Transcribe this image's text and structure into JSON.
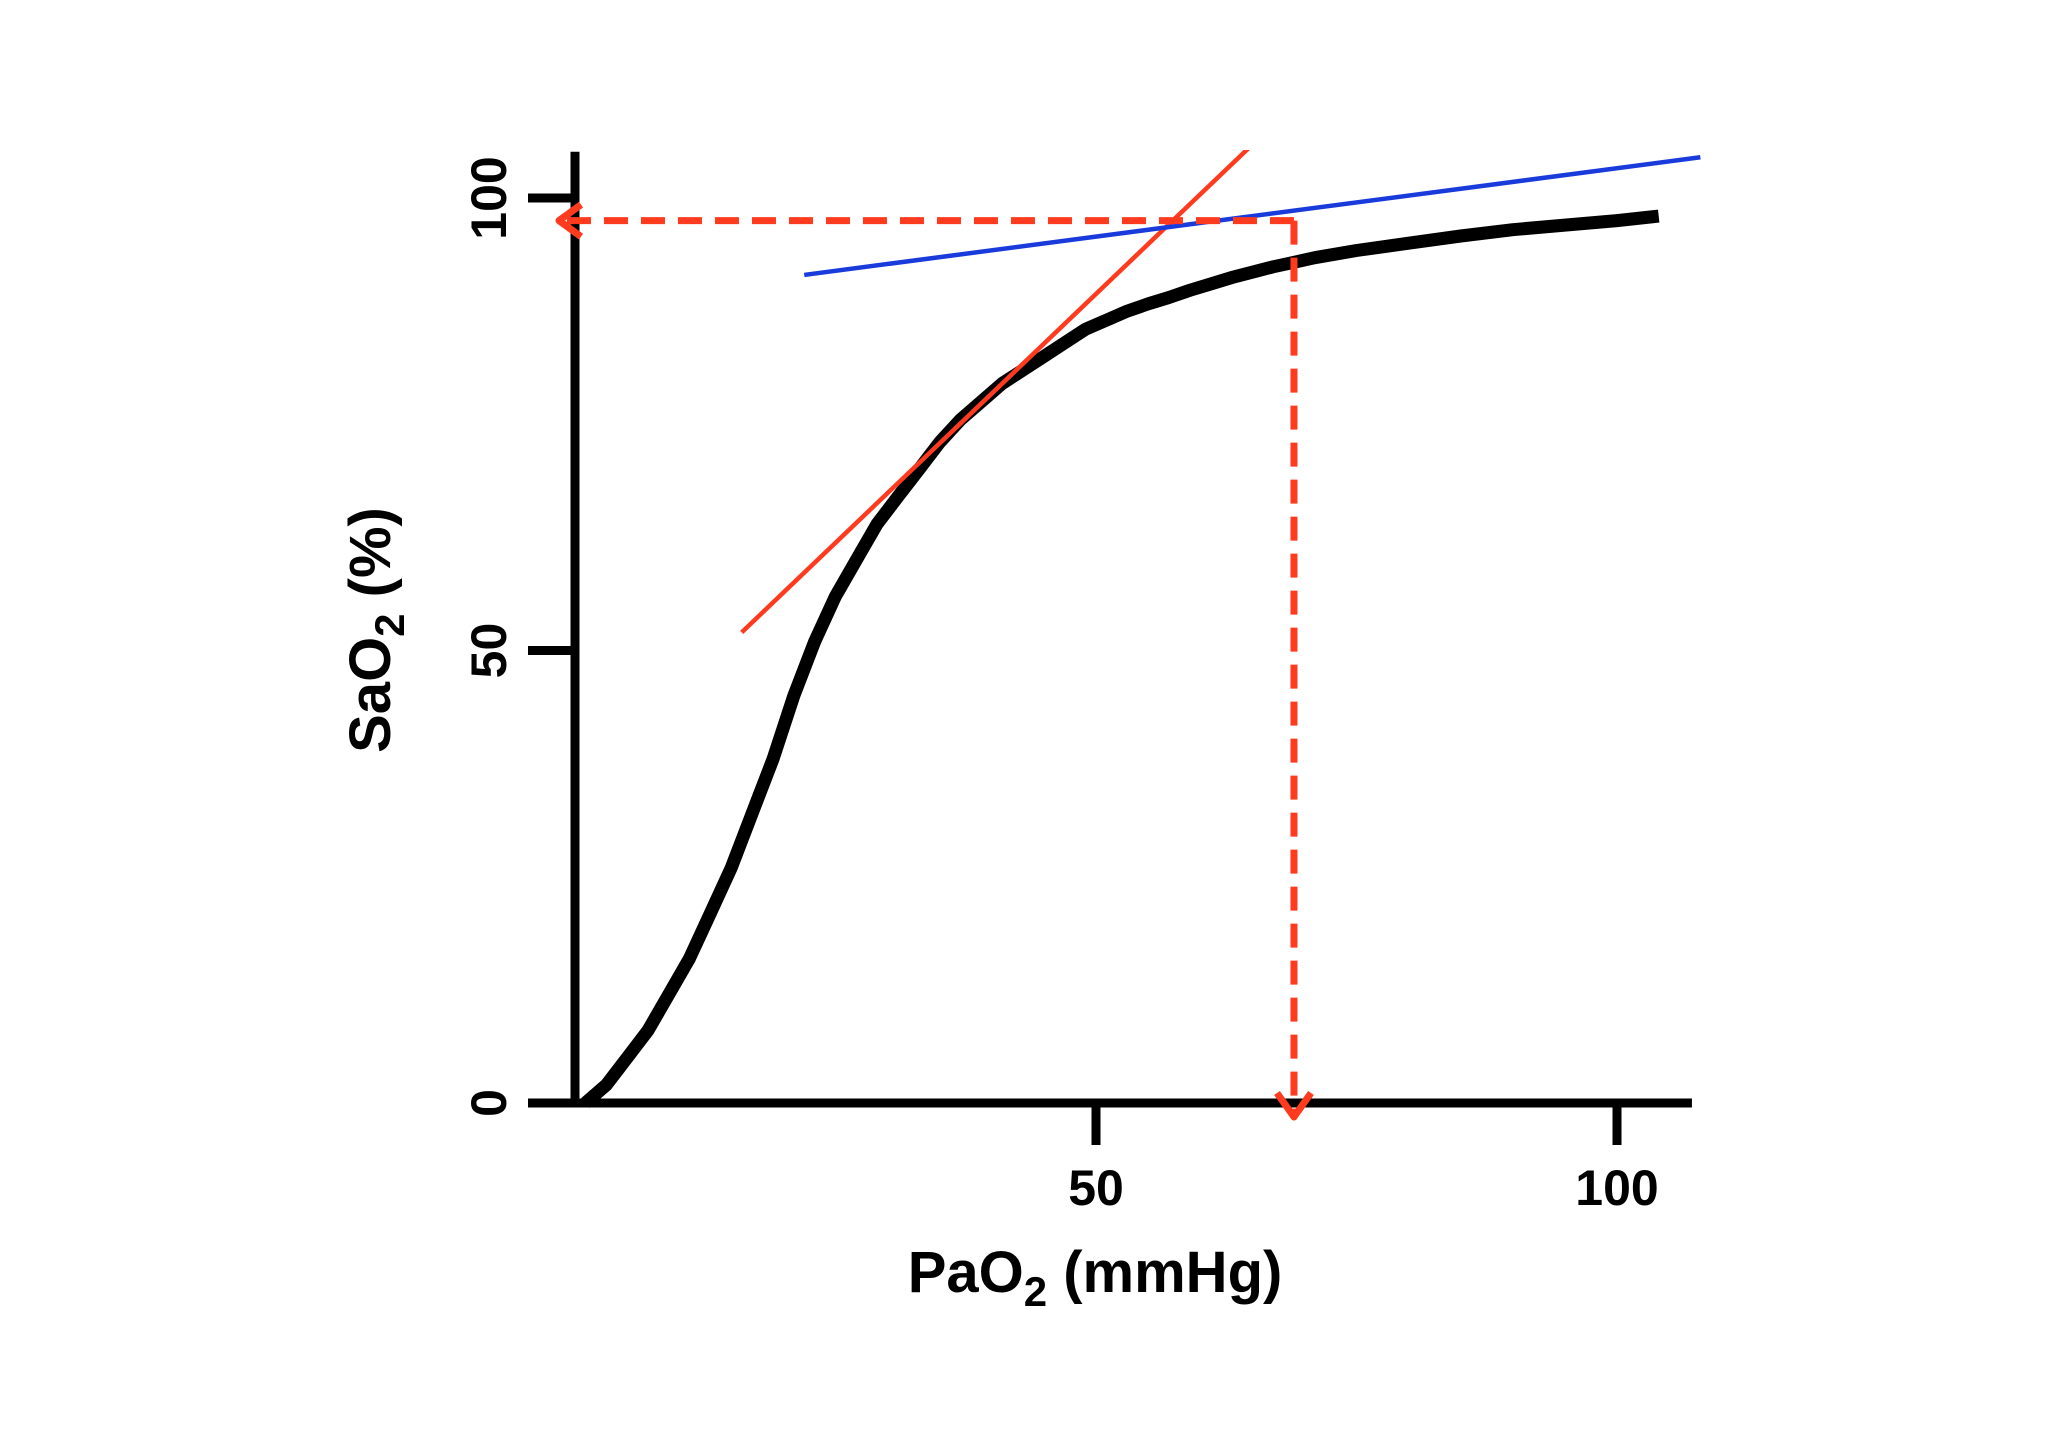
{
  "chart_data": {
    "type": "line",
    "title": "",
    "xlabel": {
      "main": "PaO",
      "sub": "2",
      "suffix": " (mmHg)"
    },
    "ylabel": {
      "main": "SaO",
      "sub": "2",
      "suffix": " (%)"
    },
    "xlim": [
      0,
      107
    ],
    "ylim": [
      0,
      104
    ],
    "xticks": [
      {
        "value": 50,
        "label": "50"
      },
      {
        "value": 100,
        "label": "100"
      }
    ],
    "yticks": [
      {
        "value": 0,
        "label": "0"
      },
      {
        "value": 50,
        "label": "50"
      },
      {
        "value": 100,
        "label": "100"
      }
    ],
    "grid": false,
    "series": [
      {
        "name": "oxyhemoglobin dissociation curve",
        "color": "#000000",
        "x": [
          1,
          3,
          5,
          7,
          9,
          11,
          13,
          15,
          17,
          19,
          21,
          23,
          25,
          27,
          29,
          31,
          33,
          35,
          37,
          39,
          41,
          43,
          45,
          47,
          49,
          51,
          53,
          55,
          57,
          59,
          61,
          63,
          65,
          67,
          69,
          71,
          75,
          80,
          85,
          90,
          95,
          100,
          104
        ],
        "y": [
          0,
          2,
          5,
          8,
          12,
          16,
          21,
          26,
          32,
          38,
          45,
          51,
          56,
          60,
          64,
          67,
          70,
          73,
          75.5,
          77.5,
          79.5,
          81,
          82.5,
          84,
          85.5,
          86.5,
          87.5,
          88.3,
          89,
          89.8,
          90.5,
          91.2,
          91.8,
          92.4,
          92.9,
          93.4,
          94.2,
          95,
          95.8,
          96.5,
          97,
          97.5,
          98
        ]
      }
    ],
    "annotations": [
      {
        "name": "steep-tangent",
        "type": "line",
        "color": "#ff3b1f",
        "x": [
          16,
          66
        ],
        "y": [
          52,
          107
        ]
      },
      {
        "name": "plateau-tangent",
        "type": "line",
        "color": "#1a3bdb",
        "x": [
          22,
          108
        ],
        "y": [
          91.5,
          104.5
        ]
      },
      {
        "name": "dashed-horizontal-arrow",
        "type": "arrow",
        "color": "#ff3b1f",
        "x": [
          69,
          0
        ],
        "y": [
          97.5,
          97.5
        ]
      },
      {
        "name": "dashed-vertical-arrow",
        "type": "arrow",
        "color": "#ff3b1f",
        "x": [
          69,
          69
        ],
        "y": [
          97.5,
          0
        ]
      }
    ]
  }
}
